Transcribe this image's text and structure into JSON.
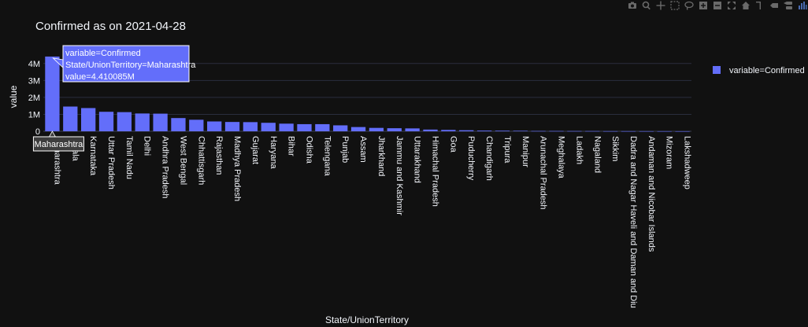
{
  "chart_data": {
    "type": "bar",
    "title": "Confirmed as on 2021-04-28",
    "xlabel": "State/UnionTerritory",
    "ylabel": "value",
    "ylim": [
      0,
      4500000
    ],
    "yticks": [
      {
        "value": 0,
        "label": "0"
      },
      {
        "value": 1000000,
        "label": "1M"
      },
      {
        "value": 2000000,
        "label": "2M"
      },
      {
        "value": 3000000,
        "label": "3M"
      },
      {
        "value": 4000000,
        "label": "4M"
      }
    ],
    "grid": true,
    "legend_position": "top-right",
    "categories": [
      "Maharashtra",
      "Kerala",
      "Karnataka",
      "Uttar Pradesh",
      "Tamil Nadu",
      "Delhi",
      "Andhra Pradesh",
      "West Bengal",
      "Chhattisgarh",
      "Rajasthan",
      "Madhya Pradesh",
      "Gujarat",
      "Haryana",
      "Bihar",
      "Odisha",
      "Telengana",
      "Punjab",
      "Assam",
      "Jharkhand",
      "Jammu and Kashmir",
      "Uttarakhand",
      "Himachal Pradesh",
      "Goa",
      "Puducherry",
      "Chandigarh",
      "Tripura",
      "Manipur",
      "Arunachal Pradesh",
      "Meghalaya",
      "Ladakh",
      "Nagaland",
      "Sikkim",
      "Dadra and Nagar Haveli and Daman and Diu",
      "Andaman and Nicobar Islands",
      "Mizoram",
      "Lakshadweep"
    ],
    "series": [
      {
        "name": "variable=Confirmed",
        "color": "#636efa",
        "values": [
          4410085,
          1460000,
          1370000,
          1150000,
          1130000,
          1050000,
          1040000,
          780000,
          680000,
          580000,
          550000,
          540000,
          500000,
          450000,
          420000,
          420000,
          350000,
          250000,
          200000,
          180000,
          170000,
          100000,
          80000,
          60000,
          40000,
          35000,
          30000,
          18000,
          17000,
          14000,
          13000,
          8000,
          7000,
          6000,
          5000,
          3000
        ]
      }
    ]
  },
  "hover": {
    "lines": [
      "variable=Confirmed",
      "State/UnionTerritory=Maharashtra",
      "value=4.410085M"
    ],
    "x_label": "Maharashtra",
    "index": 0
  },
  "toolbar": {
    "buttons": [
      "camera-icon",
      "zoom-icon",
      "pan-icon",
      "box-select-icon",
      "lasso-select-icon",
      "zoom-in-icon",
      "zoom-out-icon",
      "autoscale-icon",
      "home-icon",
      "spike-lines-icon",
      "hover-closest-icon",
      "hover-compare-icon",
      "plotly-logo-icon"
    ]
  }
}
